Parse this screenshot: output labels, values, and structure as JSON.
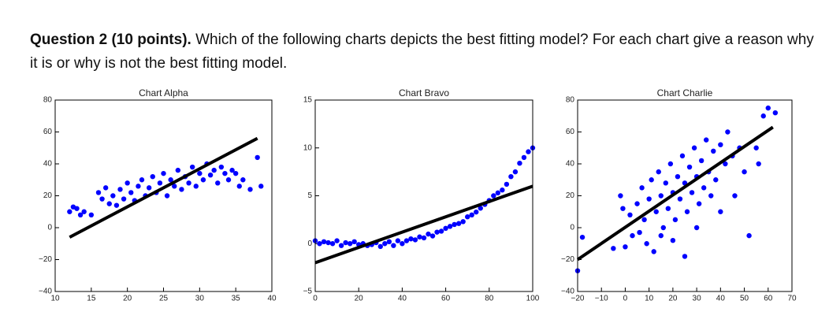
{
  "question": {
    "label": "Question 2 (10 points).",
    "text": "Which of the following charts depicts the best fitting model? For each chart give a reason why it is or why is not the best fitting model."
  },
  "chart_data": [
    {
      "type": "scatter",
      "title": "Chart Alpha",
      "xlim": [
        10,
        40
      ],
      "xticks": [
        10,
        15,
        20,
        25,
        30,
        35,
        40
      ],
      "ylim": [
        -40,
        80
      ],
      "yticks": [
        {
          "value": -40,
          "label": "−40"
        },
        {
          "value": -20,
          "label": "−20"
        },
        0,
        20,
        40,
        60,
        80
      ],
      "series": [
        {
          "type": "scatter",
          "color": "#0000ff",
          "x": [
            12,
            12.5,
            13,
            13.5,
            14,
            15,
            16,
            16.5,
            17,
            17.5,
            18,
            18.5,
            19,
            19.5,
            20,
            20.5,
            21,
            21.5,
            22,
            22.5,
            23,
            23.5,
            24,
            24.5,
            25,
            25.5,
            26,
            26.5,
            27,
            27.5,
            28,
            28.5,
            29,
            29.5,
            30,
            30.5,
            31,
            31.5,
            32,
            32.5,
            33,
            33.5,
            34,
            34.5,
            35,
            35.5,
            36,
            37,
            38,
            38.5
          ],
          "y": [
            10,
            13,
            12,
            8,
            10,
            8,
            22,
            18,
            25,
            15,
            20,
            14,
            24,
            18,
            28,
            22,
            17,
            26,
            30,
            20,
            25,
            32,
            22,
            28,
            34,
            20,
            30,
            26,
            36,
            24,
            32,
            28,
            38,
            26,
            34,
            30,
            40,
            33,
            36,
            28,
            38,
            34,
            30,
            36,
            34,
            26,
            30,
            24,
            44,
            26
          ]
        },
        {
          "type": "line",
          "color": "#000000",
          "x": [
            12,
            38
          ],
          "y": [
            -6,
            56
          ]
        }
      ]
    },
    {
      "type": "scatter",
      "title": "Chart Bravo",
      "xlim": [
        0,
        100
      ],
      "xticks": [
        0,
        20,
        40,
        60,
        80,
        100
      ],
      "ylim": [
        -5,
        15
      ],
      "yticks": [
        {
          "value": -5,
          "label": "−5"
        },
        0,
        5,
        10,
        15
      ],
      "series": [
        {
          "type": "scatter",
          "color": "#0000ff",
          "x": [
            0,
            2,
            4,
            6,
            8,
            10,
            12,
            14,
            16,
            18,
            20,
            22,
            24,
            26,
            28,
            30,
            32,
            34,
            36,
            38,
            40,
            42,
            44,
            46,
            48,
            50,
            52,
            54,
            56,
            58,
            60,
            62,
            64,
            66,
            68,
            70,
            72,
            74,
            76,
            78,
            80,
            82,
            84,
            86,
            88,
            90,
            92,
            94,
            96,
            98,
            100
          ],
          "y": [
            0.3,
            0,
            0.2,
            0.1,
            0,
            0.3,
            -0.2,
            0.1,
            0,
            0.2,
            -0.1,
            0,
            -0.2,
            -0.1,
            0.1,
            -0.3,
            0,
            0.2,
            -0.2,
            0.3,
            0,
            0.3,
            0.5,
            0.4,
            0.7,
            0.6,
            1,
            0.8,
            1.2,
            1.3,
            1.6,
            1.8,
            2,
            2.1,
            2.3,
            2.8,
            3,
            3.3,
            3.7,
            4.1,
            4.5,
            5,
            5.3,
            5.6,
            6.2,
            7,
            7.5,
            8.4,
            9,
            9.6,
            10
          ]
        },
        {
          "type": "line",
          "color": "#000000",
          "x": [
            0,
            100
          ],
          "y": [
            -2,
            6
          ]
        }
      ]
    },
    {
      "type": "scatter",
      "title": "Chart Charlie",
      "xlim": [
        -20,
        70
      ],
      "xticks": [
        {
          "value": -20,
          "label": "−20"
        },
        {
          "value": -10,
          "label": "−10"
        },
        0,
        10,
        20,
        30,
        40,
        50,
        60,
        70
      ],
      "ylim": [
        -40,
        80
      ],
      "yticks": [
        {
          "value": -40,
          "label": "−40"
        },
        {
          "value": -20,
          "label": "−20"
        },
        0,
        20,
        40,
        60,
        80
      ],
      "series": [
        {
          "type": "scatter",
          "color": "#0000ff",
          "x": [
            -20,
            -18,
            -5,
            -2,
            -1,
            0,
            2,
            3,
            5,
            6,
            7,
            8,
            9,
            10,
            11,
            12,
            13,
            14,
            15,
            15,
            16,
            17,
            18,
            19,
            20,
            20,
            21,
            22,
            23,
            24,
            25,
            25,
            26,
            27,
            28,
            29,
            30,
            30,
            31,
            32,
            33,
            34,
            35,
            36,
            37,
            38,
            40,
            40,
            42,
            43,
            45,
            46,
            48,
            50,
            52,
            55,
            56,
            58,
            60,
            63
          ],
          "y": [
            -27,
            -6,
            -13,
            20,
            12,
            -12,
            8,
            -5,
            15,
            -3,
            25,
            5,
            -10,
            18,
            30,
            -15,
            10,
            35,
            20,
            -5,
            0,
            28,
            12,
            40,
            22,
            -8,
            5,
            32,
            18,
            45,
            28,
            -18,
            10,
            38,
            22,
            50,
            32,
            0,
            15,
            42,
            25,
            55,
            35,
            20,
            48,
            30,
            52,
            10,
            40,
            60,
            45,
            20,
            50,
            35,
            -5,
            50,
            40,
            70,
            75,
            72
          ]
        },
        {
          "type": "line",
          "color": "#000000",
          "x": [
            -20,
            62
          ],
          "y": [
            -20,
            63
          ]
        }
      ]
    }
  ]
}
